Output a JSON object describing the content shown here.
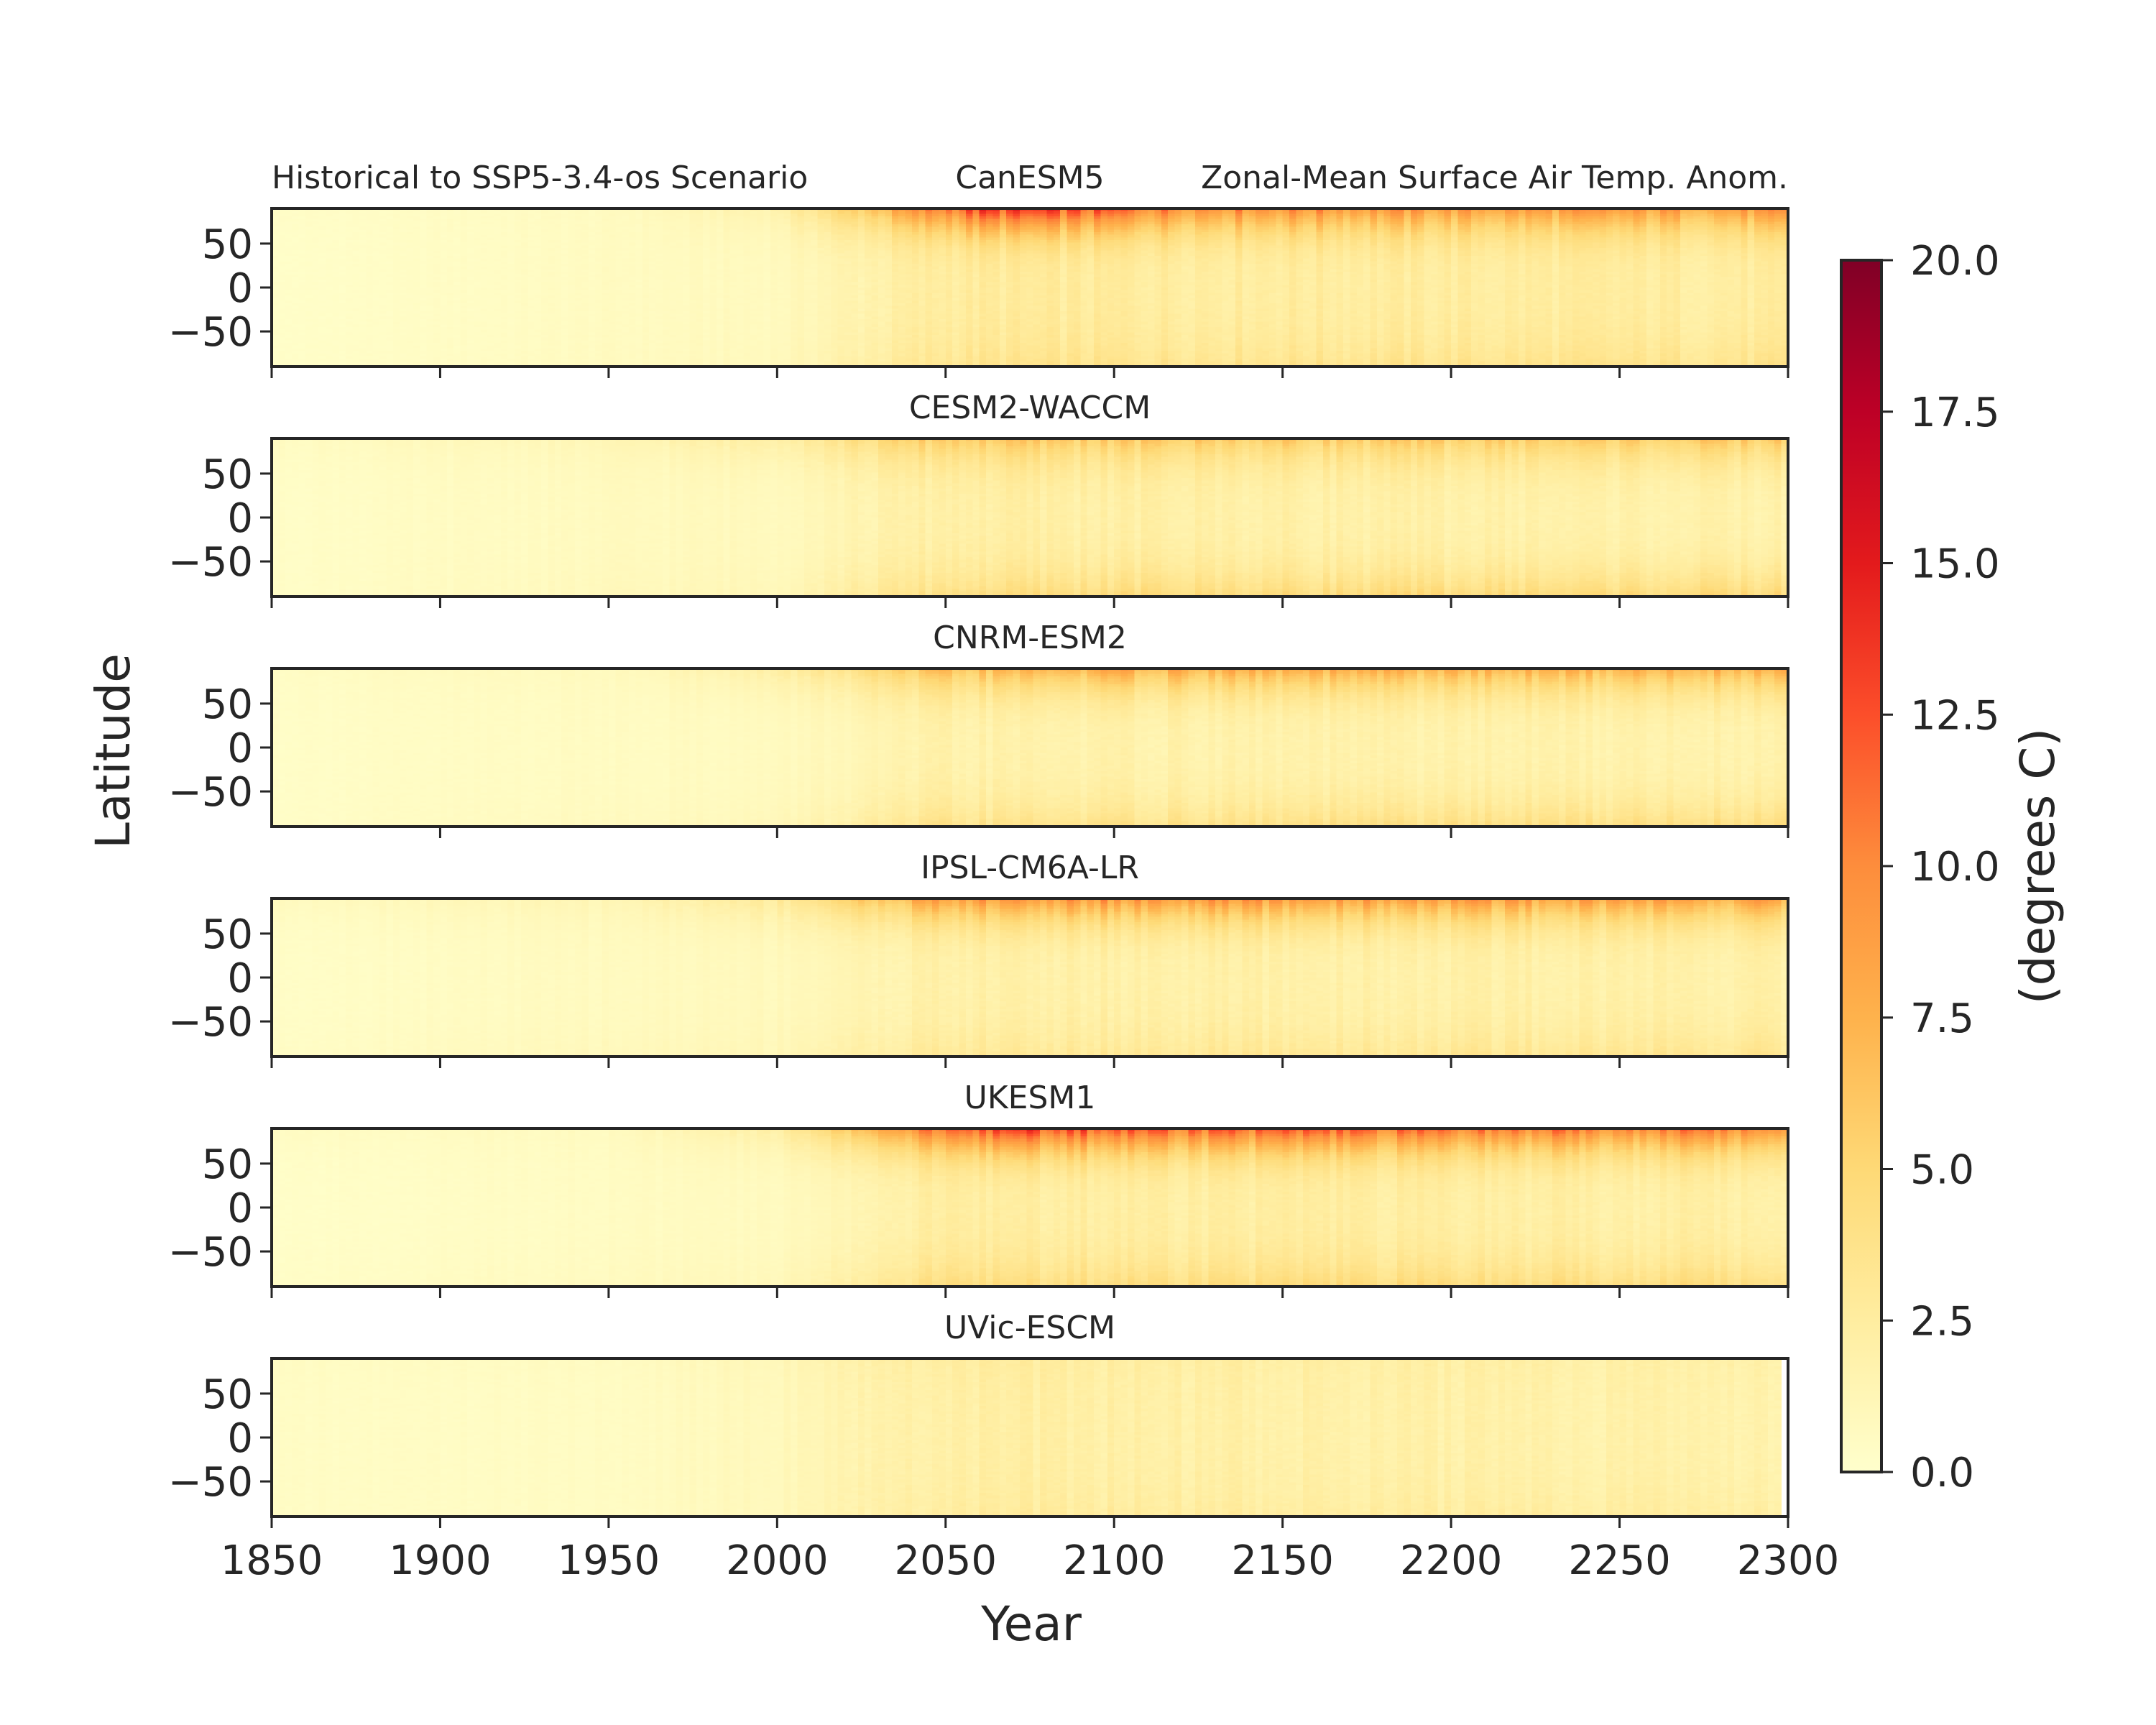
{
  "figure": {
    "suptitle_left": "Historical to SSP5-3.4-os Scenario",
    "suptitle_right": "Zonal-Mean Surface Air Temp. Anom."
  },
  "chart_data": {
    "type": "heatmap",
    "xlabel": "Year",
    "ylabel": "Latitude",
    "xlim": [
      1850,
      2300
    ],
    "ylim": [
      -90,
      90
    ],
    "x_ticks": [
      1850,
      1900,
      1950,
      2000,
      2050,
      2100,
      2150,
      2200,
      2250,
      2300
    ],
    "y_ticks": [
      50,
      0,
      -50
    ],
    "y_tick_labels": [
      "50",
      "0",
      "−50"
    ],
    "colormap": "YlOrRd",
    "colorbar": {
      "label": "(degrees C)",
      "range": [
        0.0,
        20.0
      ],
      "ticks": [
        "0.0",
        "2.5",
        "5.0",
        "7.5",
        "10.0",
        "12.5",
        "15.0",
        "17.5",
        "20.0"
      ],
      "colors": [
        "#ffffcc",
        "#ffeda0",
        "#fed976",
        "#feb24c",
        "#fd8d3c",
        "#fc4e2a",
        "#e31a1c",
        "#bd0026",
        "#800026"
      ]
    },
    "panels": [
      {
        "model": "CanESM5",
        "x_range": [
          1850,
          2300
        ],
        "x_tick_years": [
          1850,
          1900,
          1950,
          2000,
          2050,
          2100,
          2150,
          2200,
          2250,
          2300
        ],
        "arctic_anomaly": [
          [
            1850,
            0.3
          ],
          [
            1950,
            0.6
          ],
          [
            2000,
            1.8
          ],
          [
            2030,
            7.0
          ],
          [
            2060,
            13.5
          ],
          [
            2080,
            13.0
          ],
          [
            2120,
            10.5
          ],
          [
            2200,
            9.0
          ],
          [
            2300,
            9.0
          ]
        ],
        "tropical_anomaly": [
          [
            1850,
            0.2
          ],
          [
            2000,
            0.8
          ],
          [
            2050,
            2.6
          ],
          [
            2100,
            2.6
          ],
          [
            2300,
            2.4
          ]
        ],
        "antarctic_anomaly": [
          [
            1850,
            0.2
          ],
          [
            2000,
            0.9
          ],
          [
            2050,
            3.4
          ],
          [
            2100,
            3.6
          ],
          [
            2300,
            3.6
          ]
        ]
      },
      {
        "model": "CESM2-WACCM",
        "x_range": [
          1850,
          2300
        ],
        "x_tick_years": [
          1850,
          1900,
          1950,
          2000,
          2050,
          2100,
          2150,
          2200,
          2250,
          2300
        ],
        "arctic_anomaly": [
          [
            1850,
            0.6
          ],
          [
            1950,
            1.2
          ],
          [
            2000,
            2.5
          ],
          [
            2050,
            6.2
          ],
          [
            2100,
            6.0
          ],
          [
            2200,
            5.8
          ],
          [
            2300,
            6.0
          ]
        ],
        "tropical_anomaly": [
          [
            1850,
            0.3
          ],
          [
            2000,
            0.9
          ],
          [
            2050,
            2.2
          ],
          [
            2300,
            1.8
          ]
        ],
        "antarctic_anomaly": [
          [
            1850,
            0.3
          ],
          [
            2000,
            1.2
          ],
          [
            2050,
            4.2
          ],
          [
            2100,
            4.6
          ],
          [
            2300,
            4.8
          ]
        ]
      },
      {
        "model": "CNRM-ESM2",
        "x_range": [
          1850,
          2300
        ],
        "x_tick_years": [
          1900,
          2000,
          2100,
          2200,
          2300
        ],
        "arctic_anomaly": [
          [
            1850,
            0.5
          ],
          [
            1950,
            0.8
          ],
          [
            2000,
            2.2
          ],
          [
            2050,
            6.5
          ],
          [
            2100,
            8.0
          ],
          [
            2200,
            7.5
          ],
          [
            2300,
            7.8
          ]
        ],
        "tropical_anomaly": [
          [
            1850,
            0.3
          ],
          [
            2000,
            0.7
          ],
          [
            2050,
            1.8
          ],
          [
            2300,
            1.8
          ]
        ],
        "antarctic_anomaly": [
          [
            1850,
            0.3
          ],
          [
            2000,
            1.0
          ],
          [
            2050,
            3.6
          ],
          [
            2300,
            4.4
          ]
        ]
      },
      {
        "model": "IPSL-CM6A-LR",
        "x_range": [
          1850,
          2300
        ],
        "x_tick_years": [
          1850,
          1900,
          1950,
          2000,
          2050,
          2100,
          2150,
          2200,
          2250,
          2300
        ],
        "arctic_anomaly": [
          [
            1850,
            0.8
          ],
          [
            1950,
            1.3
          ],
          [
            2000,
            3.0
          ],
          [
            2050,
            9.0
          ],
          [
            2100,
            9.5
          ],
          [
            2200,
            9.0
          ],
          [
            2300,
            8.6
          ]
        ],
        "tropical_anomaly": [
          [
            1850,
            0.3
          ],
          [
            2000,
            0.9
          ],
          [
            2050,
            2.0
          ],
          [
            2300,
            2.0
          ]
        ],
        "antarctic_anomaly": [
          [
            1850,
            0.4
          ],
          [
            2000,
            1.2
          ],
          [
            2050,
            3.0
          ],
          [
            2300,
            3.4
          ]
        ]
      },
      {
        "model": "UKESM1",
        "x_range": [
          1850,
          2300
        ],
        "x_tick_years": [
          1850,
          1900,
          1950,
          2000,
          2050,
          2100,
          2150,
          2200,
          2250,
          2300
        ],
        "arctic_anomaly": [
          [
            1850,
            0.5
          ],
          [
            1950,
            0.7
          ],
          [
            2000,
            2.2
          ],
          [
            2030,
            8.5
          ],
          [
            2070,
            13.8
          ],
          [
            2100,
            12.5
          ],
          [
            2200,
            11.0
          ],
          [
            2300,
            10.8
          ]
        ],
        "tropical_anomaly": [
          [
            1850,
            0.2
          ],
          [
            2000,
            0.7
          ],
          [
            2050,
            2.4
          ],
          [
            2300,
            2.2
          ]
        ],
        "antarctic_anomaly": [
          [
            1850,
            0.3
          ],
          [
            2000,
            1.0
          ],
          [
            2050,
            4.4
          ],
          [
            2300,
            4.6
          ]
        ]
      },
      {
        "model": "UVic-ESCM",
        "x_range": [
          1850,
          2298
        ],
        "x_tick_years": [],
        "arctic_anomaly": [
          [
            1850,
            0.5
          ],
          [
            1950,
            0.6
          ],
          [
            2000,
            1.2
          ],
          [
            2050,
            2.6
          ],
          [
            2100,
            2.4
          ],
          [
            2300,
            2.0
          ]
        ],
        "tropical_anomaly": [
          [
            1850,
            0.4
          ],
          [
            1950,
            0.5
          ],
          [
            2000,
            1.0
          ],
          [
            2050,
            2.2
          ],
          [
            2100,
            2.1
          ],
          [
            2300,
            1.8
          ]
        ],
        "antarctic_anomaly": [
          [
            1850,
            0.4
          ],
          [
            1950,
            0.5
          ],
          [
            2000,
            1.0
          ],
          [
            2050,
            2.6
          ],
          [
            2100,
            2.6
          ],
          [
            2300,
            2.4
          ]
        ]
      }
    ]
  }
}
